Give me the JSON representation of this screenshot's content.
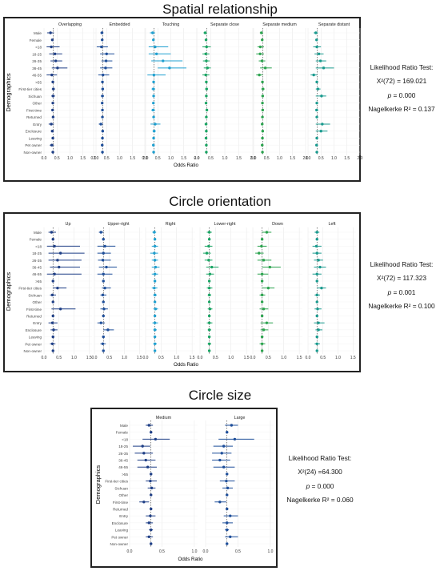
{
  "colors": {
    "series": [
      "#1f3f86",
      "#1f4f9a",
      "#20a0d0",
      "#19a463",
      "#2ca34f",
      "#1a9a8e"
    ],
    "frame": "#222222",
    "grid": "#e6e6e6"
  },
  "demographics": [
    "Male",
    "Female",
    "<18",
    "18-25",
    "26-35",
    "36-45",
    "46-55",
    ">55",
    "First-tier cities",
    "Sichuan",
    "Other",
    "First-time",
    "Returned",
    "Entry",
    "Enclosure",
    "Leaving",
    "Pet owner",
    "Non-owner"
  ],
  "tick_labels_spatial": [
    "0.0",
    "0.5",
    "1.0",
    "1.5",
    "2.0"
  ],
  "tick_labels_orient": [
    "0.0",
    "0.5",
    "1.0",
    "1.5"
  ],
  "tick_labels_size": [
    "0.0",
    "0.5",
    "1.0"
  ],
  "chart_data": [
    {
      "type": "scatter",
      "title": "Spatial relationship",
      "xlabel": "Odds Ratio",
      "ylabel": "Demographics",
      "xlim": [
        0,
        2
      ],
      "reference_line": 0.35,
      "grid": true,
      "categories": [
        "Male",
        "Female",
        "<18",
        "18-25",
        "26-35",
        "36-45",
        "46-55",
        ">55",
        "First-tier cities",
        "Sichuan",
        "Other",
        "First-time",
        "Returned",
        "Entry",
        "Enclosure",
        "Leaving",
        "Pet owner",
        "Non-owner"
      ],
      "series": [
        {
          "name": "Overlapping",
          "values": [
            0.25,
            0.32,
            0.28,
            0.42,
            0.45,
            0.52,
            0.3,
            0.34,
            0.36,
            0.35,
            0.34,
            0.33,
            0.35,
            0.28,
            0.32,
            0.34,
            0.3,
            0.34
          ],
          "lower": [
            0.12,
            0.3,
            0.1,
            0.2,
            0.25,
            0.3,
            0.1,
            0.32,
            0.3,
            0.28,
            0.3,
            0.28,
            0.33,
            0.18,
            0.26,
            0.3,
            0.22,
            0.32
          ],
          "upper": [
            0.38,
            0.34,
            0.6,
            0.7,
            0.7,
            0.9,
            0.5,
            0.36,
            0.42,
            0.42,
            0.38,
            0.38,
            0.37,
            0.38,
            0.38,
            0.38,
            0.38,
            0.36
          ]
        },
        {
          "name": "Embedded",
          "values": [
            0.32,
            0.33,
            0.3,
            0.5,
            0.48,
            0.46,
            0.36,
            0.34,
            0.35,
            0.34,
            0.33,
            0.34,
            0.34,
            0.28,
            0.35,
            0.34,
            0.33,
            0.34
          ],
          "lower": [
            0.26,
            0.31,
            0.12,
            0.25,
            0.3,
            0.25,
            0.18,
            0.32,
            0.3,
            0.28,
            0.3,
            0.3,
            0.32,
            0.2,
            0.3,
            0.31,
            0.28,
            0.32
          ],
          "upper": [
            0.38,
            0.35,
            0.55,
            0.8,
            0.72,
            0.72,
            0.6,
            0.36,
            0.4,
            0.4,
            0.36,
            0.38,
            0.36,
            0.36,
            0.4,
            0.37,
            0.38,
            0.36
          ]
        },
        {
          "name": "Touching",
          "values": [
            0.3,
            0.33,
            0.4,
            0.45,
            0.7,
            0.95,
            0.35,
            0.34,
            0.33,
            0.34,
            0.33,
            0.32,
            0.34,
            0.4,
            0.36,
            0.34,
            0.33,
            0.34
          ],
          "lower": [
            0.2,
            0.3,
            0.15,
            0.15,
            0.25,
            0.5,
            0.1,
            0.32,
            0.26,
            0.3,
            0.3,
            0.25,
            0.32,
            0.22,
            0.3,
            0.3,
            0.28,
            0.32
          ],
          "upper": [
            0.4,
            0.36,
            0.9,
            1.0,
            1.45,
            1.6,
            0.8,
            0.36,
            0.4,
            0.38,
            0.36,
            0.4,
            0.36,
            0.6,
            0.42,
            0.38,
            0.38,
            0.36
          ]
        },
        {
          "name": "Separate close",
          "values": [
            0.3,
            0.33,
            0.35,
            0.32,
            0.34,
            0.38,
            0.32,
            0.34,
            0.35,
            0.34,
            0.33,
            0.36,
            0.34,
            0.33,
            0.34,
            0.33,
            0.34,
            0.34
          ],
          "lower": [
            0.24,
            0.31,
            0.2,
            0.2,
            0.22,
            0.25,
            0.2,
            0.32,
            0.3,
            0.3,
            0.3,
            0.32,
            0.32,
            0.28,
            0.3,
            0.3,
            0.3,
            0.32
          ],
          "upper": [
            0.36,
            0.35,
            0.5,
            0.45,
            0.46,
            0.5,
            0.45,
            0.36,
            0.4,
            0.38,
            0.36,
            0.4,
            0.36,
            0.38,
            0.38,
            0.36,
            0.38,
            0.36
          ]
        },
        {
          "name": "Separate medium",
          "values": [
            0.3,
            0.33,
            0.26,
            0.25,
            0.32,
            0.45,
            0.22,
            0.34,
            0.36,
            0.35,
            0.34,
            0.35,
            0.34,
            0.33,
            0.35,
            0.34,
            0.33,
            0.34
          ],
          "lower": [
            0.24,
            0.31,
            0.15,
            0.1,
            0.2,
            0.25,
            0.1,
            0.32,
            0.3,
            0.3,
            0.3,
            0.3,
            0.32,
            0.28,
            0.3,
            0.31,
            0.28,
            0.32
          ],
          "upper": [
            0.36,
            0.35,
            0.4,
            0.4,
            0.45,
            0.7,
            0.35,
            0.36,
            0.42,
            0.4,
            0.38,
            0.4,
            0.36,
            0.38,
            0.4,
            0.37,
            0.38,
            0.36
          ]
        },
        {
          "name": "Separate distant",
          "values": [
            0.3,
            0.33,
            0.34,
            0.42,
            0.48,
            0.6,
            0.22,
            0.34,
            0.38,
            0.52,
            0.34,
            0.33,
            0.34,
            0.55,
            0.5,
            0.34,
            0.33,
            0.34
          ],
          "lower": [
            0.22,
            0.31,
            0.2,
            0.25,
            0.3,
            0.3,
            0.1,
            0.32,
            0.3,
            0.3,
            0.3,
            0.28,
            0.32,
            0.3,
            0.3,
            0.3,
            0.28,
            0.32
          ],
          "upper": [
            0.38,
            0.35,
            0.5,
            0.6,
            0.7,
            1.0,
            0.35,
            0.36,
            0.48,
            0.7,
            0.38,
            0.4,
            0.36,
            0.85,
            0.75,
            0.38,
            0.38,
            0.36
          ]
        }
      ],
      "likelihood_ratio_test": {
        "label": "Likelihood Ratio Test:",
        "chi": "X²(72) = 169.021",
        "p": "= 0.000",
        "r2": "Nagelkerke R² = 0.137"
      }
    },
    {
      "type": "scatter",
      "title": "Circle orientation",
      "xlabel": "Odds Ratio",
      "ylabel": "Demographics",
      "xlim": [
        0,
        1.6
      ],
      "reference_line": 0.3,
      "grid": true,
      "categories": [
        "Male",
        "Female",
        "<18",
        "18-25",
        "26-35",
        "36-45",
        "46-55",
        ">55",
        "First-tier cities",
        "Sichuan",
        "Other",
        "First-time",
        "Returned",
        "Entry",
        "Enclosure",
        "Leaving",
        "Pet owner",
        "Non-owner"
      ],
      "series": [
        {
          "name": "Up",
          "values": [
            0.25,
            0.3,
            0.35,
            0.55,
            0.45,
            0.5,
            0.35,
            0.3,
            0.45,
            0.28,
            0.3,
            0.55,
            0.3,
            0.28,
            0.32,
            0.3,
            0.28,
            0.3
          ],
          "lower": [
            0.15,
            0.28,
            0.1,
            0.15,
            0.15,
            0.2,
            0.1,
            0.28,
            0.3,
            0.2,
            0.28,
            0.25,
            0.28,
            0.15,
            0.22,
            0.26,
            0.2,
            0.28
          ],
          "upper": [
            0.4,
            0.32,
            1.2,
            1.35,
            1.25,
            1.2,
            1.25,
            0.32,
            0.75,
            0.4,
            0.32,
            1.05,
            0.32,
            0.45,
            0.45,
            0.34,
            0.38,
            0.32
          ]
        },
        {
          "name": "Upper-right",
          "values": [
            0.22,
            0.3,
            0.35,
            0.3,
            0.28,
            0.4,
            0.3,
            0.3,
            0.35,
            0.28,
            0.3,
            0.32,
            0.3,
            0.22,
            0.45,
            0.3,
            0.28,
            0.3
          ],
          "lower": [
            0.15,
            0.28,
            0.1,
            0.1,
            0.12,
            0.15,
            0.1,
            0.28,
            0.25,
            0.2,
            0.28,
            0.2,
            0.28,
            0.1,
            0.3,
            0.26,
            0.2,
            0.28
          ],
          "upper": [
            0.3,
            0.32,
            0.7,
            0.55,
            0.55,
            0.75,
            0.6,
            0.32,
            0.55,
            0.4,
            0.32,
            0.45,
            0.32,
            0.35,
            0.65,
            0.34,
            0.38,
            0.32
          ]
        },
        {
          "name": "Right",
          "values": [
            0.28,
            0.3,
            0.3,
            0.28,
            0.3,
            0.32,
            0.3,
            0.3,
            0.28,
            0.3,
            0.3,
            0.32,
            0.3,
            0.3,
            0.3,
            0.3,
            0.3,
            0.3
          ],
          "lower": [
            0.22,
            0.28,
            0.2,
            0.15,
            0.2,
            0.2,
            0.2,
            0.28,
            0.2,
            0.25,
            0.28,
            0.25,
            0.28,
            0.22,
            0.25,
            0.27,
            0.25,
            0.28
          ],
          "upper": [
            0.34,
            0.32,
            0.4,
            0.4,
            0.4,
            0.45,
            0.4,
            0.32,
            0.38,
            0.36,
            0.32,
            0.4,
            0.32,
            0.4,
            0.36,
            0.33,
            0.36,
            0.32
          ]
        },
        {
          "name": "Lower-right",
          "values": [
            0.3,
            0.3,
            0.28,
            0.22,
            0.28,
            0.38,
            0.32,
            0.3,
            0.3,
            0.3,
            0.3,
            0.32,
            0.3,
            0.3,
            0.3,
            0.3,
            0.3,
            0.3
          ],
          "lower": [
            0.22,
            0.28,
            0.15,
            0.1,
            0.15,
            0.2,
            0.2,
            0.28,
            0.22,
            0.25,
            0.28,
            0.25,
            0.28,
            0.22,
            0.25,
            0.27,
            0.25,
            0.28
          ],
          "upper": [
            0.38,
            0.32,
            0.4,
            0.35,
            0.4,
            0.6,
            0.45,
            0.32,
            0.4,
            0.36,
            0.32,
            0.4,
            0.32,
            0.4,
            0.36,
            0.33,
            0.36,
            0.32
          ]
        },
        {
          "name": "Down",
          "values": [
            0.45,
            0.3,
            0.28,
            0.2,
            0.35,
            0.55,
            0.3,
            0.3,
            0.5,
            0.3,
            0.3,
            0.35,
            0.3,
            0.45,
            0.35,
            0.3,
            0.3,
            0.3
          ],
          "lower": [
            0.3,
            0.28,
            0.15,
            0.08,
            0.15,
            0.3,
            0.15,
            0.28,
            0.3,
            0.22,
            0.28,
            0.22,
            0.28,
            0.25,
            0.25,
            0.27,
            0.22,
            0.28
          ],
          "upper": [
            0.6,
            0.32,
            0.45,
            0.35,
            0.6,
            0.9,
            0.5,
            0.32,
            0.7,
            0.4,
            0.32,
            0.5,
            0.32,
            0.65,
            0.5,
            0.33,
            0.4,
            0.32
          ]
        },
        {
          "name": "Left",
          "values": [
            0.3,
            0.3,
            0.28,
            0.3,
            0.35,
            0.4,
            0.3,
            0.3,
            0.45,
            0.3,
            0.3,
            0.32,
            0.3,
            0.35,
            0.35,
            0.3,
            0.3,
            0.3
          ],
          "lower": [
            0.22,
            0.28,
            0.15,
            0.15,
            0.2,
            0.2,
            0.15,
            0.28,
            0.3,
            0.22,
            0.28,
            0.22,
            0.28,
            0.2,
            0.25,
            0.27,
            0.22,
            0.28
          ],
          "upper": [
            0.38,
            0.32,
            0.45,
            0.45,
            0.5,
            0.6,
            0.45,
            0.32,
            0.6,
            0.4,
            0.32,
            0.45,
            0.32,
            0.55,
            0.48,
            0.33,
            0.4,
            0.32
          ]
        }
      ],
      "likelihood_ratio_test": {
        "label": "Likelihood Ratio Test:",
        "chi": "X²(72) = 117.323",
        "p": "= 0.001",
        "r2": "Nagelkerke R² = 0.100"
      }
    },
    {
      "type": "scatter",
      "title": "Circle size",
      "xlabel": "Odds Ratio",
      "ylabel": "Demographics",
      "xlim": [
        0,
        1.05
      ],
      "reference_line": 0.33,
      "grid": true,
      "categories": [
        "Male",
        "Female",
        "<18",
        "18-25",
        "26-35",
        "36-45",
        "46-55",
        ">55",
        "First-tier cities",
        "Sichuan",
        "Other",
        "First-time",
        "Returned",
        "Entry",
        "Enclosure",
        "Leaving",
        "Pet owner",
        "Non-owner"
      ],
      "series": [
        {
          "name": "Medium",
          "values": [
            0.3,
            0.33,
            0.4,
            0.2,
            0.22,
            0.25,
            0.28,
            0.33,
            0.32,
            0.34,
            0.33,
            0.22,
            0.33,
            0.32,
            0.3,
            0.33,
            0.3,
            0.33
          ],
          "lower": [
            0.25,
            0.31,
            0.2,
            0.05,
            0.08,
            0.12,
            0.12,
            0.31,
            0.25,
            0.28,
            0.31,
            0.15,
            0.31,
            0.25,
            0.25,
            0.3,
            0.25,
            0.31
          ],
          "upper": [
            0.36,
            0.35,
            0.62,
            0.32,
            0.36,
            0.4,
            0.42,
            0.35,
            0.42,
            0.4,
            0.35,
            0.3,
            0.35,
            0.4,
            0.36,
            0.36,
            0.36,
            0.35
          ]
        },
        {
          "name": "Large",
          "values": [
            0.4,
            0.33,
            0.45,
            0.28,
            0.25,
            0.22,
            0.28,
            0.33,
            0.32,
            0.34,
            0.33,
            0.22,
            0.33,
            0.38,
            0.33,
            0.33,
            0.38,
            0.33
          ],
          "lower": [
            0.3,
            0.31,
            0.2,
            0.12,
            0.1,
            0.1,
            0.12,
            0.31,
            0.22,
            0.26,
            0.31,
            0.14,
            0.31,
            0.28,
            0.26,
            0.3,
            0.3,
            0.31
          ],
          "upper": [
            0.5,
            0.35,
            0.75,
            0.42,
            0.4,
            0.38,
            0.45,
            0.35,
            0.45,
            0.42,
            0.35,
            0.32,
            0.35,
            0.5,
            0.42,
            0.36,
            0.5,
            0.35
          ]
        }
      ],
      "likelihood_ratio_test": {
        "label": "Likelihood Ratio Test:",
        "chi": "X²(24) =64.300",
        "p": "= 0.000",
        "r2": "Nagelkerke R² = 0.060"
      }
    }
  ]
}
